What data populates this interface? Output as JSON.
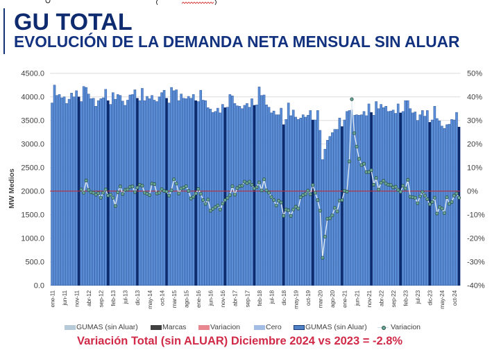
{
  "header": {
    "title": "GU TOTAL",
    "subtitle": "EVOLUCIÓN DE LA DEMANDA NETA MENSUAL SIN ALUAR"
  },
  "chart_data": {
    "type": "bar",
    "title": "EVOLUCIÓN DE LA DEMANDA NETA MENSUAL SIN ALUAR",
    "xlabel": "",
    "ylabel": "MW Medios",
    "y2label": "",
    "ylim": [
      0,
      4500
    ],
    "y2lim": [
      -40,
      50
    ],
    "grid": true,
    "legend_position": "bottom",
    "y_ticks": [
      "0.0",
      "500.0",
      "1000.0",
      "1500.0",
      "2000.0",
      "2500.0",
      "3000.0",
      "3500.0",
      "4000.0",
      "4500.0"
    ],
    "y2_ticks": [
      "-40%",
      "-30%",
      "-20%",
      "-10%",
      "0%",
      "10%",
      "20%",
      "30%",
      "40%",
      "50%"
    ],
    "x": [
      "ene-11",
      "feb-11",
      "mar-11",
      "abr-11",
      "may-11",
      "jun-11",
      "jul-11",
      "ago-11",
      "sep-11",
      "oct-11",
      "nov-11",
      "dic-11",
      "ene-12",
      "feb-12",
      "mar-12",
      "abr-12",
      "may-12",
      "jun-12",
      "jul-12",
      "ago-12",
      "sep-12",
      "oct-12",
      "nov-12",
      "dic-12",
      "ene-13",
      "feb-13",
      "mar-13",
      "abr-13",
      "may-13",
      "jun-13",
      "jul-13",
      "ago-13",
      "sep-13",
      "oct-13",
      "nov-13",
      "dic-13",
      "ene-14",
      "feb-14",
      "mar-14",
      "abr-14",
      "may-14",
      "jun-14",
      "jul-14",
      "ago-14",
      "sep-14",
      "oct-14",
      "nov-14",
      "dic-14",
      "ene-15",
      "feb-15",
      "mar-15",
      "abr-15",
      "may-15",
      "jun-15",
      "jul-15",
      "ago-15",
      "sep-15",
      "oct-15",
      "nov-15",
      "dic-15",
      "ene-16",
      "feb-16",
      "mar-16",
      "abr-16",
      "may-16",
      "jun-16",
      "jul-16",
      "ago-16",
      "sep-16",
      "oct-16",
      "nov-16",
      "dic-16",
      "ene-17",
      "feb-17",
      "mar-17",
      "abr-17",
      "may-17",
      "jun-17",
      "jul-17",
      "ago-17",
      "sep-17",
      "oct-17",
      "nov-17",
      "dic-17",
      "ene-18",
      "feb-18",
      "mar-18",
      "abr-18",
      "may-18",
      "jun-18",
      "jul-18",
      "ago-18",
      "sep-18",
      "oct-18",
      "nov-18",
      "dic-18",
      "ene-19",
      "feb-19",
      "mar-19",
      "abr-19",
      "may-19",
      "jun-19",
      "jul-19",
      "ago-19",
      "sep-19",
      "oct-19",
      "nov-19",
      "dic-19",
      "ene-20",
      "feb-20",
      "mar-20",
      "abr-20",
      "may-20",
      "jun-20",
      "jul-20",
      "ago-20",
      "sep-20",
      "oct-20",
      "nov-20",
      "dic-20",
      "ene-21",
      "feb-21",
      "mar-21",
      "abr-21",
      "may-21",
      "jun-21",
      "jul-21",
      "ago-21",
      "sep-21",
      "oct-21",
      "nov-21",
      "dic-21",
      "ene-22",
      "feb-22",
      "mar-22",
      "abr-22",
      "may-22",
      "jun-22",
      "jul-22",
      "ago-22",
      "sep-22",
      "oct-22",
      "nov-22",
      "dic-22",
      "ene-23",
      "feb-23",
      "mar-23",
      "abr-23",
      "may-23",
      "jun-23",
      "jul-23",
      "ago-23",
      "sep-23",
      "oct-23",
      "nov-23",
      "dic-23",
      "ene-24",
      "feb-24",
      "mar-24",
      "abr-24",
      "may-24",
      "jun-24",
      "jul-24",
      "ago-24",
      "sep-24",
      "oct-24",
      "nov-24",
      "dic-24"
    ],
    "x_tick_labels": [
      "ene-11",
      "jun-11",
      "nov-11",
      "abr-12",
      "sep-12",
      "feb-13",
      "jul-13",
      "dic-13",
      "may-14",
      "oct-14",
      "mar-15",
      "ago-15",
      "ene-16",
      "jun-16",
      "nov-16",
      "abr-17",
      "sep-17",
      "feb-18",
      "jul-18",
      "dic-18",
      "may-19",
      "oct-19",
      "mar-20",
      "ago-20",
      "ene-21",
      "jun-21",
      "nov-21",
      "abr-22",
      "sep-22",
      "feb-23",
      "jul-23",
      "dic-23",
      "may-24",
      "oct-24"
    ],
    "reference_line": {
      "name": "Cero",
      "value": 2000,
      "value_y2": 0,
      "color": "#b8303c"
    },
    "series": [
      {
        "name": "GUMAS (sin Aluar)",
        "type": "bar",
        "axis": "left",
        "unit": "MW Medios",
        "color": "#5b8ed6",
        "border_color": "#2f5aa0",
        "highlight_name": "Marcas",
        "highlight_month": "dic",
        "highlight_color": "#0c2a6e",
        "values": [
          3870,
          4250,
          4030,
          4050,
          3980,
          4000,
          3860,
          3950,
          4080,
          4000,
          4130,
          4000,
          3900,
          4220,
          4200,
          4060,
          3960,
          3970,
          3800,
          3920,
          3960,
          3980,
          4160,
          3920,
          3840,
          4090,
          3950,
          4050,
          4030,
          3910,
          3820,
          3930,
          4040,
          4050,
          4150,
          3970,
          3920,
          4180,
          3920,
          4010,
          3960,
          4030,
          3930,
          3900,
          4000,
          4090,
          4140,
          3970,
          3870,
          4200,
          4130,
          4150,
          3920,
          4060,
          3970,
          3960,
          4010,
          3970,
          4050,
          3920,
          3900,
          4140,
          3930,
          3920,
          3770,
          3740,
          3670,
          3690,
          3760,
          3660,
          3840,
          3770,
          3780,
          4050,
          4020,
          3860,
          3810,
          3800,
          3750,
          3820,
          3860,
          3780,
          3960,
          3820,
          3830,
          4210,
          4030,
          4040,
          3830,
          3780,
          3660,
          3700,
          3620,
          3620,
          3760,
          3410,
          3520,
          3870,
          3600,
          3720,
          3570,
          3520,
          3550,
          3620,
          3570,
          3610,
          3710,
          3510,
          3510,
          3710,
          3290,
          2670,
          2890,
          3080,
          3160,
          3240,
          3310,
          3310,
          3550,
          3370,
          3510,
          3690,
          3710,
          3720,
          3610,
          3620,
          3610,
          3620,
          3690,
          3600,
          3850,
          3670,
          3610,
          3900,
          3750,
          3840,
          3770,
          3800,
          3690,
          3700,
          3720,
          3650,
          3850,
          3660,
          3690,
          3920,
          3920,
          3750,
          3660,
          3680,
          3500,
          3620,
          3710,
          3590,
          3710,
          3460,
          3510,
          3800,
          3540,
          3490,
          3380,
          3330,
          3410,
          3420,
          3520,
          3510,
          3670,
          3360
        ]
      },
      {
        "name": "Variacion",
        "type": "line",
        "axis": "right",
        "unit": "%",
        "start": "ene-12",
        "line_color": "#e9f1f5",
        "marker_color": "#6aa898",
        "marker_border": "#2a4d46",
        "values": [
          0.7,
          -0.7,
          4.5,
          0.5,
          -0.5,
          -0.7,
          -1.5,
          -0.9,
          -2.8,
          -0.7,
          0.7,
          -1.9,
          -1.5,
          -2.8,
          -6.3,
          -0.5,
          2.0,
          -1.2,
          0.5,
          0.7,
          1.8,
          2.0,
          -0.4,
          1.5,
          2.7,
          2.3,
          -0.7,
          -1.1,
          -1.7,
          3.2,
          3.0,
          -1.0,
          -0.7,
          0.8,
          0.1,
          -0.2,
          -1.9,
          0.3,
          5.0,
          3.2,
          -1.0,
          1.1,
          1.5,
          2.1,
          0.1,
          -3.1,
          -2.4,
          -1.0,
          0.9,
          -1.1,
          -3.8,
          -5.4,
          -3.6,
          -8.3,
          -7.5,
          -6.8,
          -6.1,
          -7.8,
          -5.3,
          -3.8,
          -2.9,
          -1.7,
          2.1,
          -1.5,
          1.3,
          2.1,
          2.3,
          4.0,
          3.4,
          4.0,
          2.7,
          1.1,
          1.7,
          3.7,
          0.3,
          5.0,
          0.3,
          -0.7,
          -2.5,
          -3.8,
          -6.1,
          -4.1,
          -4.8,
          -10.5,
          -7.8,
          -8.1,
          -10.5,
          -7.8,
          -6.6,
          -7.4,
          -2.6,
          -1.7,
          -1.2,
          0.2,
          -1.3,
          2.6,
          -0.7,
          -3.8,
          -8.3,
          -28.3,
          -19.3,
          -11.7,
          -11.5,
          -10.3,
          -7.1,
          -8.6,
          -4.0,
          -3.8,
          0.1,
          -0.2,
          12.6,
          39.0,
          24.6,
          18.9,
          13.7,
          11.1,
          11.6,
          8.1,
          8.1,
          8.9,
          2.7,
          5.6,
          0.7,
          3.6,
          4.4,
          3.2,
          2.7,
          2.6,
          1.6,
          1.9,
          0.5,
          -0.3,
          2.3,
          1.1,
          4.8,
          -2.4,
          -2.6,
          -2.8,
          -5.1,
          -2.2,
          -0.4,
          -1.9,
          -3.4,
          -5.6,
          -4.6,
          -2.8,
          -9.5,
          -6.8,
          -7.4,
          -9.3,
          -2.6,
          -5.4,
          -4.6,
          -1.9,
          -1.0,
          -2.8
        ]
      }
    ],
    "legend": [
      {
        "label": "GUMAS (sin Aluar)",
        "kind": "box",
        "color": "#b7cad8"
      },
      {
        "label": "Marcas",
        "kind": "box",
        "color": "#404040"
      },
      {
        "label": "Variacion",
        "kind": "box",
        "color": "#e8878f"
      },
      {
        "label": "Cero",
        "kind": "box",
        "color": "#a3bde4"
      },
      {
        "label": "GUMAS (sin Aluar)",
        "kind": "box",
        "color": "#4f81c7",
        "border": "#1b3a73"
      },
      {
        "label": "Variacion",
        "kind": "line-marker",
        "color": "#6aa898"
      }
    ],
    "annotation": "Variación Total (sin ALUAR) Diciembre 2024 vs 2023 = -2.8%"
  },
  "footer": {
    "summary": "Variación Total (sin ALUAR) Diciembre 2024 vs 2023 = -2.8%"
  },
  "colors": {
    "title": "#0f2b6f",
    "summary": "#d02a48",
    "gridline": "#dcdcdc"
  }
}
